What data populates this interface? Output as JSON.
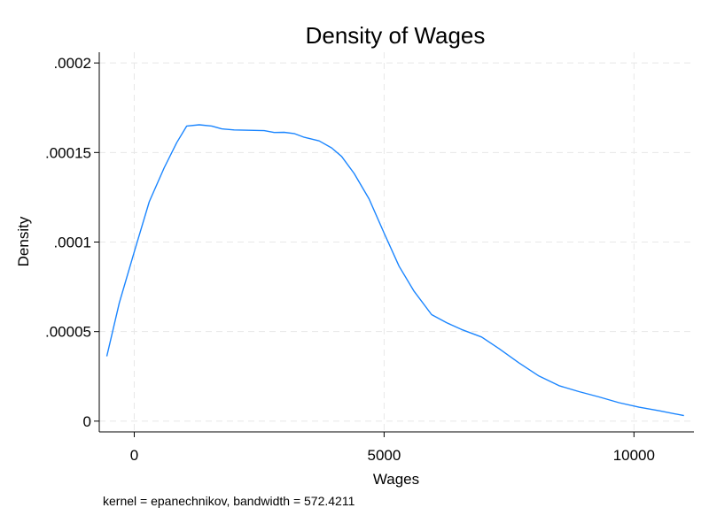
{
  "chart_data": {
    "type": "line",
    "title": "Density of Wages",
    "xlabel": "Wages",
    "ylabel": "Density",
    "note": "kernel = epanechnikov, bandwidth = 572.4211",
    "xlim": [
      -700,
      11200
    ],
    "ylim": [
      -6e-06,
      0.000206
    ],
    "x_ticks": [
      0,
      5000,
      10000
    ],
    "x_tick_labels": [
      "0",
      "5000",
      "10000"
    ],
    "y_ticks": [
      0,
      5e-05,
      0.0001,
      0.00015,
      0.0002
    ],
    "y_tick_labels": [
      "0",
      ".00005",
      ".0001",
      ".00015",
      ".0002"
    ],
    "grid": true,
    "line_color": "#1a85ff",
    "series": [
      {
        "name": "Density",
        "x": [
          -550,
          -300,
          0,
          300,
          600,
          850,
          1050,
          1300,
          1550,
          1750,
          2000,
          2300,
          2600,
          2800,
          3000,
          3200,
          3400,
          3700,
          3950,
          4150,
          4400,
          4700,
          5000,
          5300,
          5600,
          5950,
          6250,
          6550,
          6950,
          7300,
          7700,
          8100,
          8500,
          8900,
          9300,
          9700,
          10100,
          10500,
          11000
        ],
        "y": [
          3.62e-05,
          6.6e-05,
          9.45e-05,
          0.0001225,
          0.0001415,
          0.0001555,
          0.0001648,
          0.0001655,
          0.0001648,
          0.0001632,
          0.0001626,
          0.0001624,
          0.0001622,
          0.0001612,
          0.0001613,
          0.0001606,
          0.0001585,
          0.0001565,
          0.0001526,
          0.0001478,
          0.0001383,
          0.000124,
          0.000105,
          8.65e-05,
          7.25e-05,
          5.95e-05,
          5.5e-05,
          5.12e-05,
          4.7e-05,
          4.05e-05,
          3.25e-05,
          2.52e-05,
          1.98e-05,
          1.65e-05,
          1.35e-05,
          1.03e-05,
          7.8e-06,
          5.8e-06,
          3.1e-06
        ]
      }
    ]
  }
}
